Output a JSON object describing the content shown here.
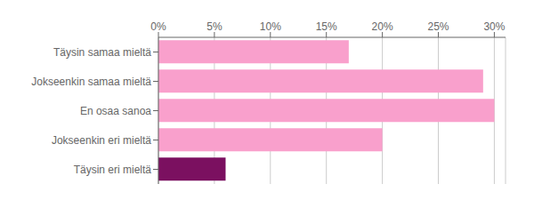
{
  "chart_data": {
    "type": "bar",
    "orientation": "horizontal",
    "categories": [
      "Täysin samaa mieltä",
      "Jokseenkin samaa mieltä",
      "En osaa sanoa",
      "Jokseenkin eri mieltä",
      "Täysin eri mieltä"
    ],
    "values": [
      17,
      29,
      30,
      20,
      6
    ],
    "colors": [
      "#f9a0cc",
      "#f9a0cc",
      "#f9a0cc",
      "#f9a0cc",
      "#7b1060"
    ],
    "xlim": [
      0,
      31
    ],
    "xticks": [
      {
        "value": 0,
        "label": "0%"
      },
      {
        "value": 5,
        "label": "5%"
      },
      {
        "value": 10,
        "label": "10%"
      },
      {
        "value": 15,
        "label": "15%"
      },
      {
        "value": 20,
        "label": "20%"
      },
      {
        "value": 25,
        "label": "25%"
      },
      {
        "value": 30,
        "label": "30%"
      }
    ],
    "grid": true
  }
}
